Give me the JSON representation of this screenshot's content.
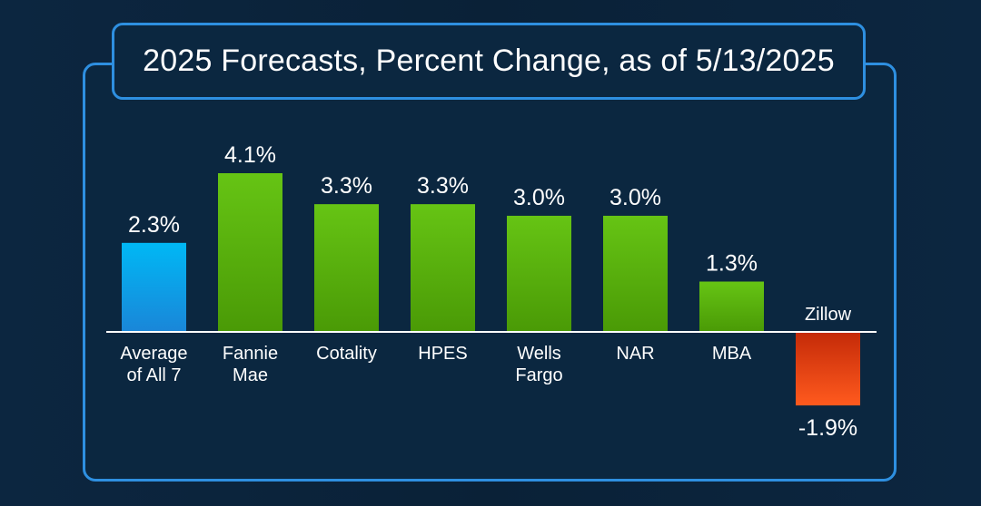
{
  "chart_data": {
    "type": "bar",
    "title": "2025 Forecasts, Percent Change, as of 5/13/2025",
    "categories": [
      [
        "Average",
        "of All 7"
      ],
      [
        "Fannie",
        "Mae"
      ],
      [
        "Cotality"
      ],
      [
        "HPES"
      ],
      [
        "Wells",
        "Fargo"
      ],
      [
        "NAR"
      ],
      [
        "MBA"
      ],
      [
        "Zillow"
      ]
    ],
    "values": [
      2.3,
      4.1,
      3.3,
      3.3,
      3.0,
      3.0,
      1.3,
      -1.9
    ],
    "value_labels": [
      "2.3%",
      "4.1%",
      "3.3%",
      "3.3%",
      "3.0%",
      "3.0%",
      "1.3%",
      "-1.9%"
    ],
    "colors": {
      "average": "#00a6e8",
      "positive": "#56b00a",
      "negative": "#f04a16",
      "frame": "#2e8fe0",
      "background": "#0a2239"
    },
    "grid": false,
    "legend": "none"
  }
}
